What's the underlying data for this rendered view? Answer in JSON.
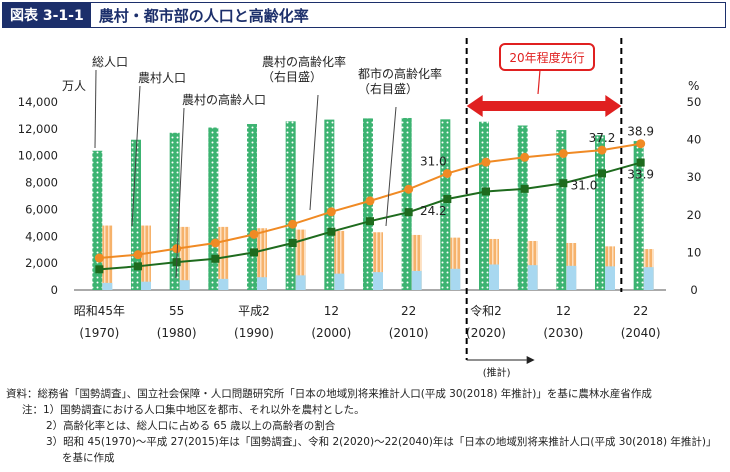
{
  "header": {
    "figure_label": "図表 3-1-1",
    "title": "農村・都市部の人口と高齢化率"
  },
  "chart_data": {
    "type": "bar+line",
    "title": "農村・都市部の人口と高齢化率",
    "left_unit": "万人",
    "right_unit": "%",
    "ylim_left": [
      0,
      14000
    ],
    "ylim_right": [
      0,
      50
    ],
    "left_ticks": [
      "0",
      "2,000",
      "4,000",
      "6,000",
      "8,000",
      "10,000",
      "12,000",
      "14,000"
    ],
    "right_ticks": [
      "0",
      "10",
      "20",
      "30",
      "40",
      "50"
    ],
    "x_labels_top": [
      "昭和45年",
      "55",
      "平成2",
      "12",
      "22",
      "令和2",
      "12",
      "22"
    ],
    "x_labels_bottom": [
      "(1970)",
      "(1980)",
      "(1990)",
      "(2000)",
      "(2010)",
      "(2020)",
      "(2030)",
      "(2040)"
    ],
    "years": [
      1970,
      1975,
      1980,
      1985,
      1990,
      1995,
      2000,
      2005,
      2010,
      2015,
      2020,
      2025,
      2030,
      2035,
      2040
    ],
    "series": [
      {
        "name": "総人口",
        "kind": "bar",
        "color": "#3cb371",
        "values": [
          10370,
          11190,
          11710,
          12100,
          12360,
          12560,
          12690,
          12780,
          12810,
          12710,
          12530,
          12250,
          11910,
          11520,
          11090
        ]
      },
      {
        "name": "農村人口",
        "kind": "bar",
        "color": "#f6b26b",
        "values": [
          4800,
          4800,
          4700,
          4700,
          4600,
          4500,
          4400,
          4300,
          4100,
          3900,
          3800,
          3650,
          3500,
          3250,
          3050
        ]
      },
      {
        "name": "農村の高齢人口",
        "kind": "bar",
        "color": "#a8d8f0",
        "values": [
          530,
          620,
          730,
          830,
          950,
          1090,
          1220,
          1330,
          1420,
          1580,
          1900,
          1850,
          1800,
          1760,
          1700
        ]
      },
      {
        "name": "農村の高齢化率",
        "kind": "line",
        "color": "#f08a24",
        "axis": "right",
        "values": [
          8.5,
          9.4,
          11.0,
          12.5,
          14.8,
          17.5,
          20.8,
          23.7,
          26.8,
          31.0,
          34.0,
          35.3,
          36.3,
          37.2,
          38.9
        ]
      },
      {
        "name": "都市の高齢化率",
        "kind": "line",
        "color": "#1e6b1e",
        "axis": "right",
        "values": [
          5.5,
          6.3,
          7.4,
          8.3,
          10.0,
          12.5,
          15.5,
          18.3,
          20.7,
          24.2,
          26.2,
          26.9,
          28.4,
          31.0,
          33.9
        ]
      }
    ],
    "legend_callouts": [
      "総人口",
      "農村人口",
      "農村の高齢人口",
      "農村の高齢化率\n（右目盛）",
      "都市の高齢化率\n（右目盛）"
    ],
    "data_labels": [
      {
        "series": "農村の高齢化率",
        "year": 2015,
        "text": "31.0"
      },
      {
        "series": "農村の高齢化率",
        "year": 2035,
        "text": "37.2"
      },
      {
        "series": "農村の高齢化率",
        "year": 2040,
        "text": "38.9"
      },
      {
        "series": "都市の高齢化率",
        "year": 2015,
        "text": "24.2"
      },
      {
        "series": "都市の高齢化率",
        "year": 2035,
        "text": "31.0"
      },
      {
        "series": "都市の高齢化率",
        "year": 2040,
        "text": "33.9"
      }
    ],
    "annotation_lead": "20年程度先行",
    "annotation_estimate": "(推計)"
  },
  "notes": {
    "source": "資料：総務省「国勢調査」、国立社会保障・人口問題研究所「日本の地域別将来推計人口(平成 30(2018) 年推計)」を基に農林水産省作成",
    "note1": "注：1）国勢調査における人口集中地区を都市、それ以外を農村とした。",
    "note2": "2）高齢化率とは、総人口に占める 65 歳以上の高齢者の割合",
    "note3": "3）昭和 45(1970)～平成 27(2015)年は「国勢調査」、令和 2(2020)～22(2040)年は「日本の地域別将来推計人口(平成 30(2018) 年推計)」",
    "note3_cont": "を基に作成"
  }
}
